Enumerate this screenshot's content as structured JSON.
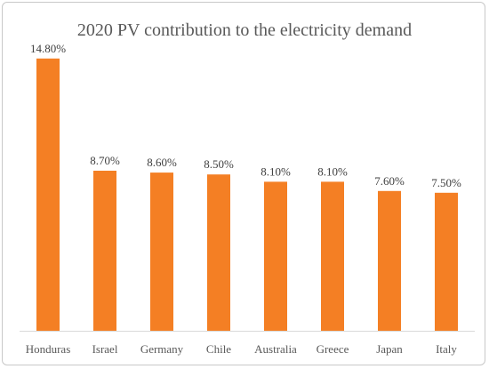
{
  "chart_data": {
    "type": "bar",
    "title": "2020 PV contribution to the electricity demand",
    "categories": [
      "Honduras",
      "Israel",
      "Germany",
      "Chile",
      "Australia",
      "Greece",
      "Japan",
      "Italy"
    ],
    "values": [
      14.8,
      8.7,
      8.6,
      8.5,
      8.1,
      8.1,
      7.6,
      7.5
    ],
    "data_labels": [
      "14.80%",
      "8.70%",
      "8.60%",
      "8.50%",
      "8.10%",
      "8.10%",
      "7.60%",
      "7.50%"
    ],
    "xlabel": "",
    "ylabel": "",
    "ylim": [
      0,
      16
    ],
    "grid": false,
    "legend": "none",
    "bar_color": "#f47f24",
    "axis_color": "#d9d9d9"
  }
}
